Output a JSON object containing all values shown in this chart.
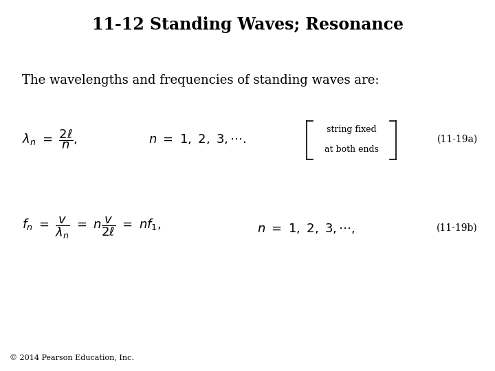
{
  "title": "11-12 Standing Waves; Resonance",
  "subtitle": "The wavelengths and frequencies of standing waves are:",
  "eq1_lhs": "$\\lambda_n \\ = \\ \\dfrac{2\\ell}{n},$",
  "eq1_rhs": "$n \\ = \\ 1, \\ 2, \\ 3, \\cdots.$",
  "eq1_label": "(11-19a)",
  "bracket_line1": "string fixed",
  "bracket_line2": "at both ends",
  "eq2_lhs": "$f_n \\ = \\ \\dfrac{v}{\\lambda_n} \\ = \\ n\\dfrac{v}{2\\ell} \\ = \\ nf_1,$",
  "eq2_rhs": "$n \\ = \\ 1, \\ 2, \\ 3, \\cdots,$",
  "eq2_label": "(11-19b)",
  "footer": "© 2014 Pearson Education, Inc.",
  "bg_color": "#ffffff",
  "text_color": "#000000",
  "title_fontsize": 17,
  "body_fontsize": 13,
  "eq_fontsize": 13,
  "label_fontsize": 10,
  "footer_fontsize": 8
}
